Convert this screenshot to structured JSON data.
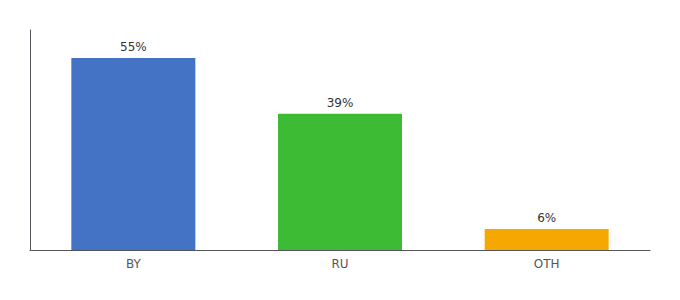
{
  "chart_data": {
    "type": "bar",
    "categories": [
      "BY",
      "RU",
      "OTH"
    ],
    "values": [
      55,
      39,
      6
    ],
    "value_labels": [
      "55%",
      "39%",
      "6%"
    ],
    "colors": [
      "#4472c4",
      "#3dbb35",
      "#f5a800"
    ],
    "ylim": [
      0,
      63
    ],
    "grid": false,
    "data_labels": true,
    "tick_labels": "x"
  }
}
